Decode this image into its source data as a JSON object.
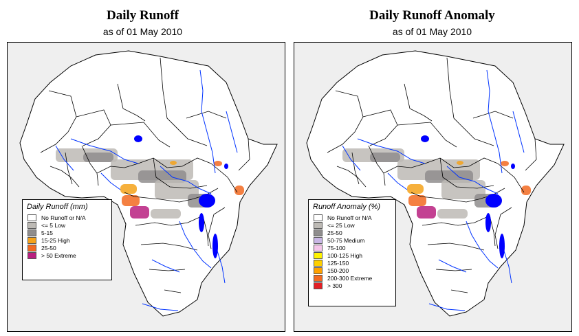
{
  "left": {
    "title": "Daily Runoff",
    "subtitle": "as of 01 May 2010",
    "legend": {
      "title": "Daily Runoff (mm)",
      "items": [
        {
          "label": "No Runoff or N/A",
          "color": "#ffffff"
        },
        {
          "label": "<= 5  Low",
          "color": "#bdbab5"
        },
        {
          "label": "5-15",
          "color": "#8f8d8d"
        },
        {
          "label": "15-25 High",
          "color": "#f5a21a"
        },
        {
          "label": "25-50",
          "color": "#f26a21"
        },
        {
          "label": "> 50  Extreme",
          "color": "#b8207f"
        }
      ]
    }
  },
  "right": {
    "title": "Daily Runoff Anomaly",
    "subtitle": "as of 01 May 2010",
    "legend": {
      "title": "Runoff Anomaly (%)",
      "items": [
        {
          "label": "No Runoff or N/A",
          "color": "#ffffff"
        },
        {
          "label": "<= 25      Low",
          "color": "#bdbab5"
        },
        {
          "label": "25-50",
          "color": "#8f8d8d"
        },
        {
          "label": "50-75    Medium",
          "color": "#c9b6e5"
        },
        {
          "label": "75-100",
          "color": "#f5c6ea"
        },
        {
          "label": "100-125  High",
          "color": "#fff200"
        },
        {
          "label": "125-150",
          "color": "#ffd000"
        },
        {
          "label": "150-200",
          "color": "#ffa100"
        },
        {
          "label": "200-300  Extreme",
          "color": "#f26a21"
        },
        {
          "label": "> 300",
          "color": "#e21f26"
        }
      ]
    }
  },
  "colors": {
    "ocean": "#efefef",
    "land": "#ffffff",
    "border": "#000000",
    "river": "#0033ff",
    "lake": "#0000ff"
  }
}
